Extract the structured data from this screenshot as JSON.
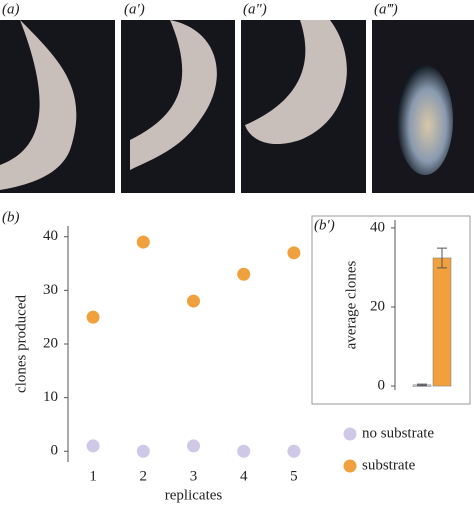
{
  "photo_labels": [
    "(a)",
    "(a′)",
    "(a″)",
    "(a‴)"
  ],
  "chart_data": [
    {
      "type": "scatter",
      "panel_label": "(b)",
      "xlabel": "replicates",
      "ylabel": "clones produced",
      "x": [
        1,
        2,
        3,
        4,
        5
      ],
      "xlim": [
        0.5,
        5.5
      ],
      "xticks": [
        1,
        2,
        3,
        4,
        5
      ],
      "ylim": [
        -2,
        42
      ],
      "yticks": [
        0,
        10,
        20,
        30,
        40
      ],
      "series": [
        {
          "name": "no substrate",
          "color": "#cfc8e6",
          "values": [
            1,
            0,
            1,
            0,
            0
          ]
        },
        {
          "name": "substrate",
          "color": "#f0a13e",
          "values": [
            25,
            39,
            28,
            33,
            37
          ]
        }
      ]
    },
    {
      "type": "bar",
      "panel_label": "(b′)",
      "ylabel": "average clones",
      "categories": [
        null,
        null
      ],
      "values": [
        0.3,
        32.4
      ],
      "errors": [
        0.2,
        2.5
      ],
      "colors": [
        "#cfc8e6",
        "#f0a13e"
      ],
      "ylim": [
        -1,
        42
      ],
      "yticks": [
        0,
        20,
        40
      ]
    }
  ]
}
